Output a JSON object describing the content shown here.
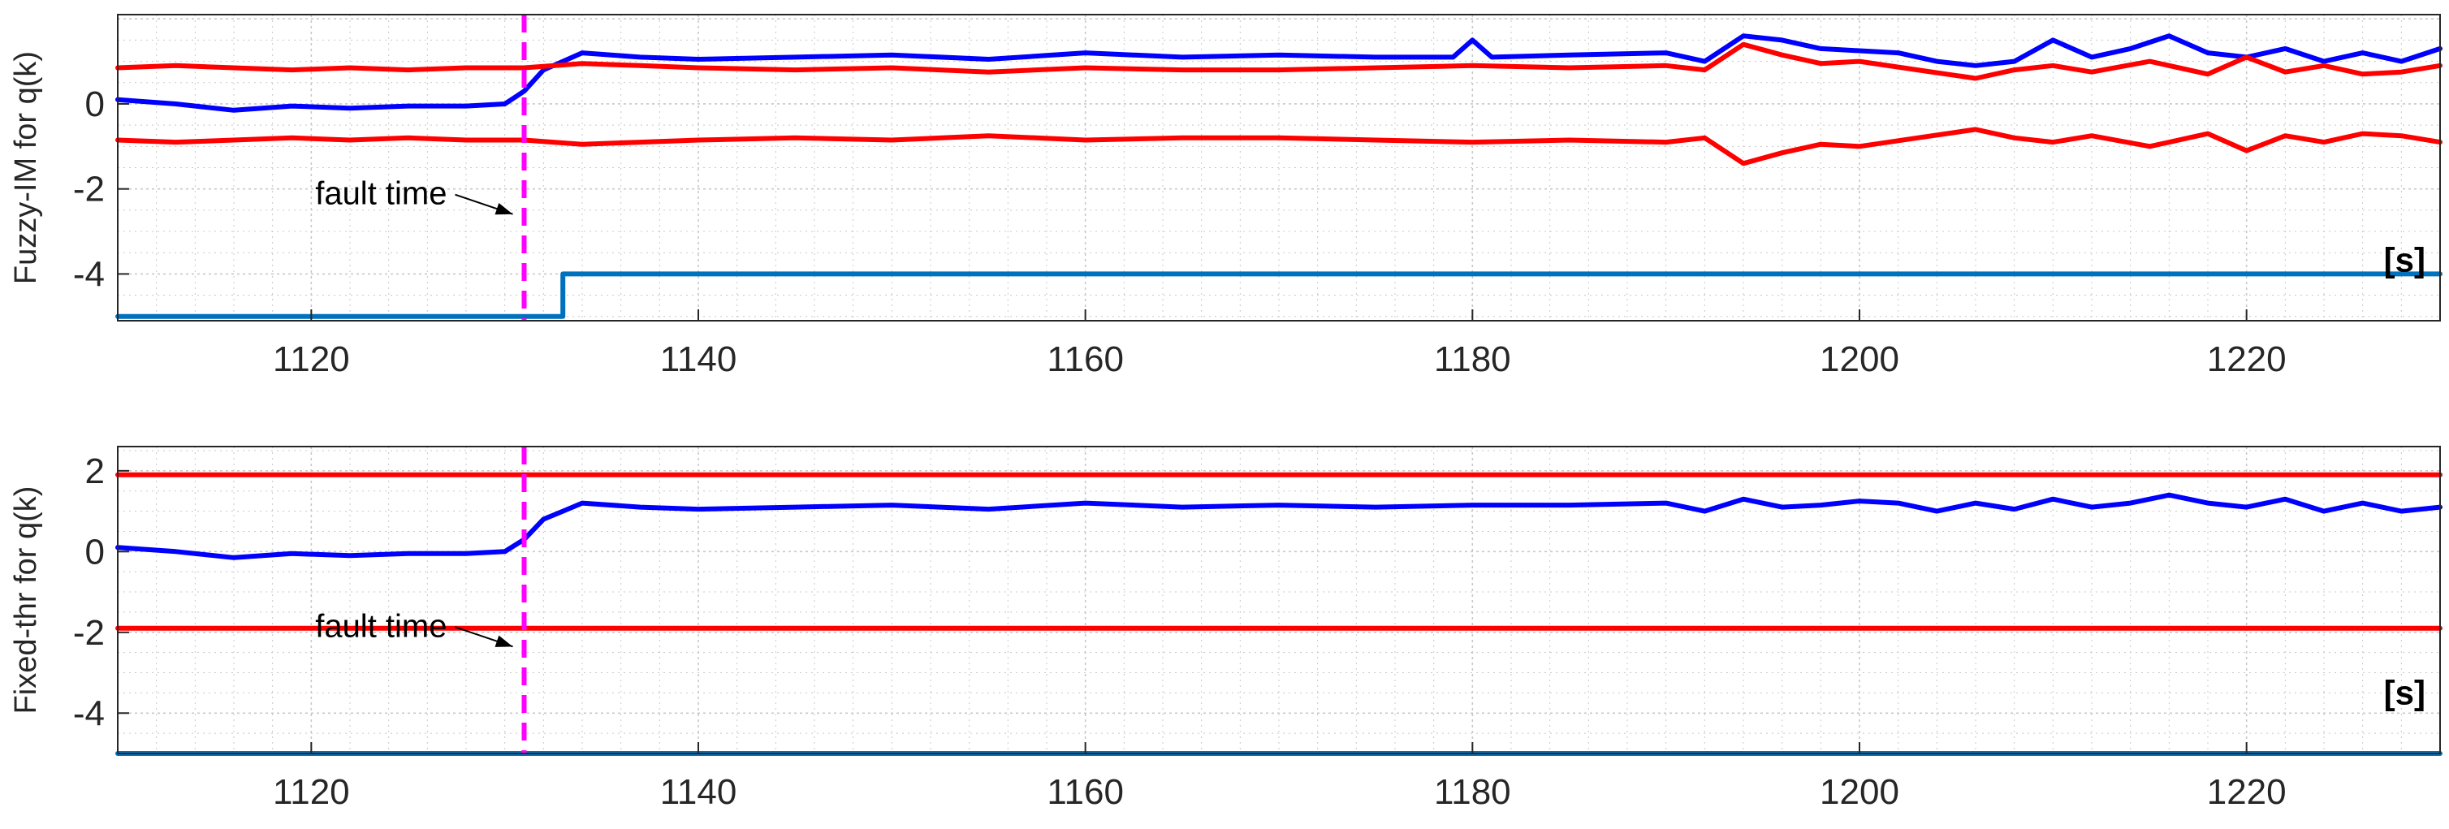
{
  "chart_data": [
    {
      "type": "line",
      "ylabel": "Fuzzy-IM for q(k)",
      "xlabel": "",
      "unit_label": "[s]",
      "xlim": [
        1110,
        1230
      ],
      "ylim": [
        -5.1,
        2.1
      ],
      "xticks": [
        1120,
        1140,
        1160,
        1180,
        1200,
        1220
      ],
      "yticks": [
        0,
        -2,
        -4
      ],
      "grid": true,
      "annotation": {
        "text": "fault time",
        "x": 1131
      },
      "series": [
        {
          "role": "residual",
          "color": "#0000ff",
          "x": [
            1110,
            1113,
            1116,
            1119,
            1122,
            1125,
            1128,
            1130,
            1131,
            1132,
            1133,
            1134,
            1137,
            1140,
            1145,
            1150,
            1155,
            1160,
            1165,
            1170,
            1175,
            1179,
            1180,
            1181,
            1185,
            1190,
            1192,
            1194,
            1196,
            1198,
            1200,
            1202,
            1204,
            1206,
            1208,
            1210,
            1212,
            1214,
            1216,
            1218,
            1220,
            1222,
            1224,
            1226,
            1228,
            1230
          ],
          "y": [
            0.1,
            0.0,
            -0.15,
            -0.05,
            -0.1,
            -0.05,
            -0.05,
            0.0,
            0.3,
            0.8,
            1.0,
            1.2,
            1.1,
            1.05,
            1.1,
            1.15,
            1.05,
            1.2,
            1.1,
            1.15,
            1.1,
            1.1,
            1.5,
            1.1,
            1.15,
            1.2,
            1.0,
            1.6,
            1.5,
            1.3,
            1.25,
            1.2,
            1.0,
            0.9,
            1.0,
            1.5,
            1.1,
            1.3,
            1.6,
            1.2,
            1.1,
            1.3,
            1.0,
            1.2,
            1.0,
            1.3
          ]
        },
        {
          "role": "upper-threshold",
          "color": "#ff0000",
          "x": [
            1110,
            1113,
            1116,
            1119,
            1122,
            1125,
            1128,
            1131,
            1134,
            1137,
            1140,
            1145,
            1150,
            1155,
            1160,
            1165,
            1170,
            1175,
            1180,
            1185,
            1190,
            1192,
            1194,
            1196,
            1198,
            1200,
            1203,
            1206,
            1208,
            1210,
            1212,
            1215,
            1218,
            1220,
            1222,
            1224,
            1226,
            1228,
            1230
          ],
          "y": [
            0.85,
            0.9,
            0.85,
            0.8,
            0.85,
            0.8,
            0.85,
            0.85,
            0.95,
            0.9,
            0.85,
            0.8,
            0.85,
            0.75,
            0.85,
            0.8,
            0.8,
            0.85,
            0.9,
            0.85,
            0.9,
            0.8,
            1.4,
            1.15,
            0.95,
            1.0,
            0.8,
            0.6,
            0.8,
            0.9,
            0.75,
            1.0,
            0.7,
            1.1,
            0.75,
            0.9,
            0.7,
            0.75,
            0.9
          ]
        },
        {
          "role": "lower-threshold",
          "color": "#ff0000",
          "x": [
            1110,
            1113,
            1116,
            1119,
            1122,
            1125,
            1128,
            1131,
            1134,
            1137,
            1140,
            1145,
            1150,
            1155,
            1160,
            1165,
            1170,
            1175,
            1180,
            1185,
            1190,
            1192,
            1194,
            1196,
            1198,
            1200,
            1203,
            1206,
            1208,
            1210,
            1212,
            1215,
            1218,
            1220,
            1222,
            1224,
            1226,
            1228,
            1230
          ],
          "y": [
            -0.85,
            -0.9,
            -0.85,
            -0.8,
            -0.85,
            -0.8,
            -0.85,
            -0.85,
            -0.95,
            -0.9,
            -0.85,
            -0.8,
            -0.85,
            -0.75,
            -0.85,
            -0.8,
            -0.8,
            -0.85,
            -0.9,
            -0.85,
            -0.9,
            -0.8,
            -1.4,
            -1.15,
            -0.95,
            -1.0,
            -0.8,
            -0.6,
            -0.8,
            -0.9,
            -0.75,
            -1.0,
            -0.7,
            -1.1,
            -0.75,
            -0.9,
            -0.7,
            -0.75,
            -0.9
          ]
        },
        {
          "role": "decision",
          "color": "#0072bd",
          "x": [
            1110,
            1133,
            1133,
            1230
          ],
          "y": [
            -5,
            -5,
            -4,
            -4
          ]
        }
      ]
    },
    {
      "type": "line",
      "ylabel": "Fixed-thr for q(k)",
      "xlabel": "",
      "unit_label": "[s]",
      "xlim": [
        1110,
        1230
      ],
      "ylim": [
        -5,
        2.6
      ],
      "xticks": [
        1120,
        1140,
        1160,
        1180,
        1200,
        1220
      ],
      "yticks": [
        2,
        0,
        -2,
        -4
      ],
      "grid": true,
      "annotation": {
        "text": "fault time",
        "x": 1131
      },
      "series": [
        {
          "role": "residual",
          "color": "#0000ff",
          "x": [
            1110,
            1113,
            1116,
            1119,
            1122,
            1125,
            1128,
            1130,
            1131,
            1132,
            1133,
            1134,
            1137,
            1140,
            1145,
            1150,
            1155,
            1160,
            1165,
            1170,
            1175,
            1180,
            1185,
            1190,
            1192,
            1194,
            1196,
            1198,
            1200,
            1202,
            1204,
            1206,
            1208,
            1210,
            1212,
            1214,
            1216,
            1218,
            1220,
            1222,
            1224,
            1226,
            1228,
            1230
          ],
          "y": [
            0.1,
            0.0,
            -0.15,
            -0.05,
            -0.1,
            -0.05,
            -0.05,
            0.0,
            0.3,
            0.8,
            1.0,
            1.2,
            1.1,
            1.05,
            1.1,
            1.15,
            1.05,
            1.2,
            1.1,
            1.15,
            1.1,
            1.15,
            1.15,
            1.2,
            1.0,
            1.3,
            1.1,
            1.15,
            1.25,
            1.2,
            1.0,
            1.2,
            1.05,
            1.3,
            1.1,
            1.2,
            1.4,
            1.2,
            1.1,
            1.3,
            1.0,
            1.2,
            1.0,
            1.1
          ]
        },
        {
          "role": "upper-threshold",
          "color": "#ff0000",
          "x": [
            1110,
            1230
          ],
          "y": [
            1.9,
            1.9
          ]
        },
        {
          "role": "lower-threshold",
          "color": "#ff0000",
          "x": [
            1110,
            1230
          ],
          "y": [
            -1.9,
            -1.9
          ]
        },
        {
          "role": "decision",
          "color": "#0072bd",
          "x": [
            1110,
            1230
          ],
          "y": [
            -5,
            -5
          ]
        }
      ]
    }
  ],
  "colors": {
    "fault_marker": "#ff00ff",
    "grid": "#c8c8c8",
    "axis": "#262626"
  }
}
